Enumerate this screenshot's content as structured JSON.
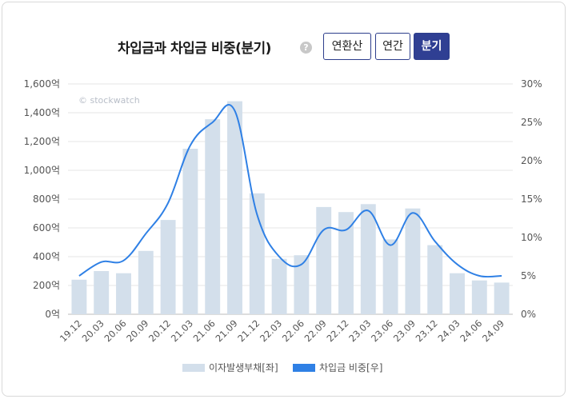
{
  "header": {
    "title": "차입금과 차입금 비중(분기)",
    "help_icon": "question-circle-icon",
    "tabs": [
      {
        "label": "연환산",
        "active": false
      },
      {
        "label": "연간",
        "active": false
      },
      {
        "label": "분기",
        "active": true
      }
    ]
  },
  "watermark": "© stockwatch",
  "colors": {
    "bar": "#d3dfeb",
    "line": "#2f80e5",
    "active_tab": "#2f3f93"
  },
  "chart_data": {
    "type": "bar",
    "categories": [
      "19.12",
      "20.03",
      "20.06",
      "20.09",
      "20.12",
      "21.03",
      "21.06",
      "21.09",
      "21.12",
      "22.03",
      "22.06",
      "22.09",
      "22.12",
      "23.03",
      "23.06",
      "23.09",
      "23.12",
      "24.03",
      "24.06",
      "24.09"
    ],
    "series": [
      {
        "name": "이자발생부채[좌]",
        "type": "bar",
        "axis": "left",
        "values": [
          240,
          300,
          285,
          440,
          655,
          1150,
          1355,
          1480,
          840,
          385,
          410,
          745,
          710,
          765,
          520,
          735,
          480,
          285,
          235,
          220
        ]
      },
      {
        "name": "차입금 비중[우]",
        "type": "line",
        "axis": "right",
        "values": [
          5.0,
          6.8,
          7.0,
          10.5,
          14.5,
          22.0,
          25.0,
          26.5,
          13.0,
          7.5,
          6.5,
          11.0,
          11.0,
          13.5,
          9.0,
          13.2,
          9.5,
          6.5,
          5.0,
          5.0
        ]
      }
    ],
    "y_left": {
      "range": [
        0,
        1600
      ],
      "ticks": [
        "0억",
        "200억",
        "400억",
        "600억",
        "800억",
        "1,000억",
        "1,200억",
        "1,400억",
        "1,600억"
      ]
    },
    "y_right": {
      "range": [
        0,
        30
      ],
      "ticks": [
        "0%",
        "5%",
        "10%",
        "15%",
        "20%",
        "25%",
        "30%"
      ]
    },
    "grid": true,
    "legend_position": "bottom"
  }
}
